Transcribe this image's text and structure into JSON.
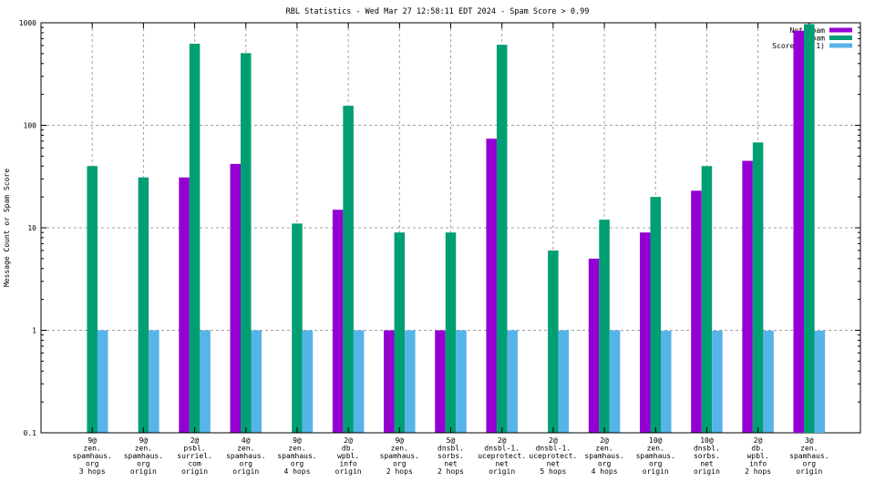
{
  "chart_data": {
    "type": "bar",
    "title": "RBL Statistics - Wed Mar 27 12:58:11 EDT 2024 - Spam Score > 0.99",
    "xlabel": "",
    "ylabel": "Message Count or Spam Score",
    "yscale": "log",
    "ylim": [
      0.1,
      1000
    ],
    "yticks": [
      {
        "value": 0.1,
        "label": "0.1"
      },
      {
        "value": 1,
        "label": "1"
      },
      {
        "value": 10,
        "label": "10"
      },
      {
        "value": 100,
        "label": "100"
      },
      {
        "value": 1000,
        "label": "1000"
      }
    ],
    "grid": true,
    "legend_position": "top-right",
    "categories": [
      [
        "9@",
        "zen.",
        "spamhaus.",
        "org",
        "3 hops"
      ],
      [
        "9@",
        "zen.",
        "spamhaus.",
        "org",
        "origin"
      ],
      [
        "2@",
        "psbl.",
        "surriel.",
        "com",
        "origin"
      ],
      [
        "4@",
        "zen.",
        "spamhaus.",
        "org",
        "origin"
      ],
      [
        "9@",
        "zen.",
        "spamhaus.",
        "org",
        "4 hops"
      ],
      [
        "2@",
        "db.",
        "wpbl.",
        "info",
        "origin"
      ],
      [
        "9@",
        "zen.",
        "spamhaus.",
        "org",
        "2 hops"
      ],
      [
        "5@",
        "dnsbl.",
        "sorbs.",
        "net",
        "2 hops"
      ],
      [
        "2@",
        "dnsbl-1.",
        "uceprotect.",
        "net",
        "origin"
      ],
      [
        "2@",
        "dnsbl-1.",
        "uceprotect.",
        "net",
        "5 hops"
      ],
      [
        "2@",
        "zen.",
        "spamhaus.",
        "org",
        "4 hops"
      ],
      [
        "10@",
        "zen.",
        "spamhaus.",
        "org",
        "origin"
      ],
      [
        "10@",
        "dnsbl.",
        "sorbs.",
        "net",
        "origin"
      ],
      [
        "2@",
        "db.",
        "wpbl.",
        "info",
        "2 hops"
      ],
      [
        "3@",
        "zen.",
        "spamhaus.",
        "org",
        "origin"
      ]
    ],
    "series": [
      {
        "name": "Not Spam",
        "color": "#9400d3",
        "values": [
          0,
          0,
          31,
          42,
          0,
          15,
          1,
          1,
          74,
          0,
          5,
          9,
          23,
          45,
          835
        ]
      },
      {
        "name": "Spam",
        "color": "#009e73",
        "values": [
          40,
          31,
          625,
          505,
          11,
          155,
          9,
          9,
          610,
          6,
          12,
          20,
          40,
          68,
          970
        ]
      },
      {
        "name": "Score (0..1)",
        "color": "#56b4e9",
        "values": [
          1,
          1,
          1,
          1,
          1,
          1,
          1,
          1,
          1,
          1,
          1,
          0.99,
          0.99,
          0.99,
          0.99
        ]
      }
    ]
  }
}
